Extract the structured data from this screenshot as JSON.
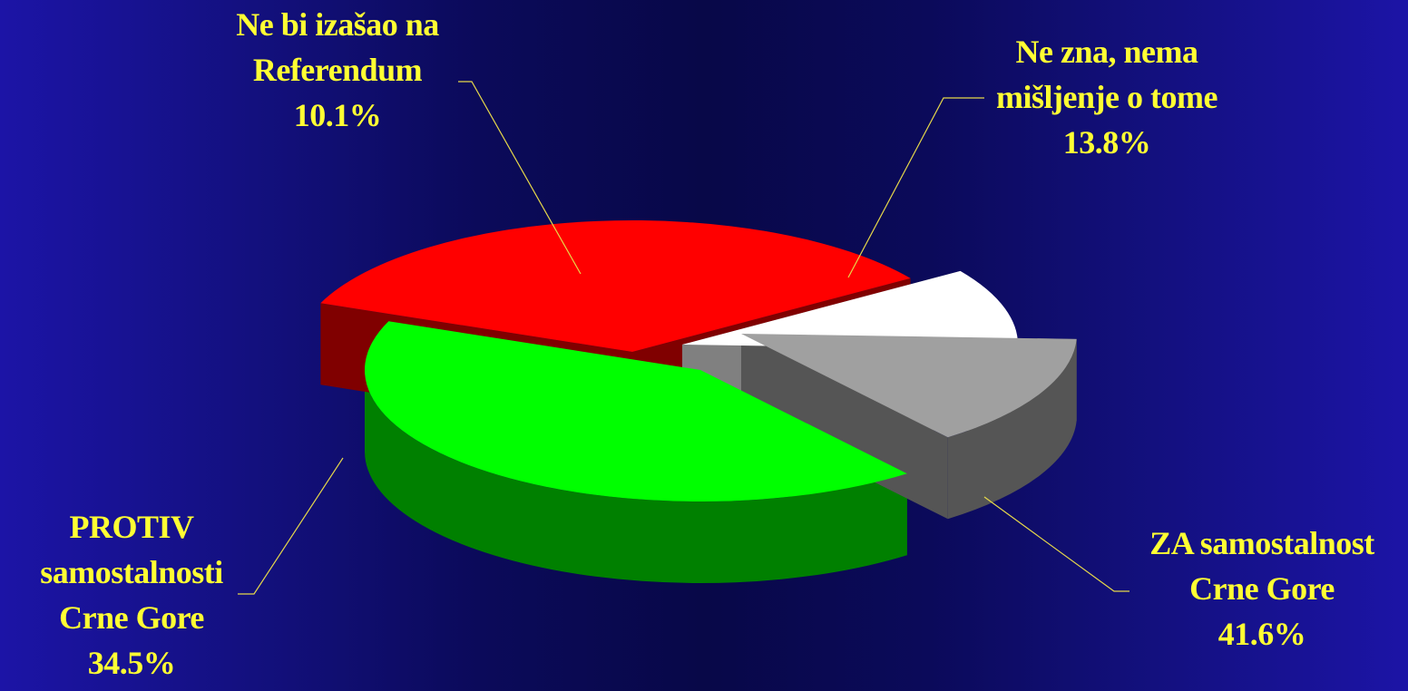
{
  "chart_data": {
    "type": "pie",
    "style": "3d-exploded",
    "label_color": "#ffff33",
    "leader_line_color": "#e6d84a",
    "slices": [
      {
        "id": "za",
        "label_lines": [
          "ZA samostalnost",
          "Crne Gore"
        ],
        "value": 41.6,
        "value_label": "41.6%",
        "color": "#00ff00",
        "side_color": "#008000"
      },
      {
        "id": "protiv",
        "label_lines": [
          "PROTIV",
          "samostalnosti",
          "Crne Gore"
        ],
        "value": 34.5,
        "value_label": "34.5%",
        "color": "#ff0000",
        "side_color": "#800000"
      },
      {
        "id": "nebi",
        "label_lines": [
          "Ne bi izašao na",
          "Referendum"
        ],
        "value": 10.1,
        "value_label": "10.1%",
        "color": "#ffffff",
        "side_color": "#808080"
      },
      {
        "id": "nezna",
        "label_lines": [
          "Ne zna, nema",
          "mišljenje o tome"
        ],
        "value": 13.8,
        "value_label": "13.8%",
        "color": "#a0a0a0",
        "side_color": "#555555"
      }
    ]
  }
}
